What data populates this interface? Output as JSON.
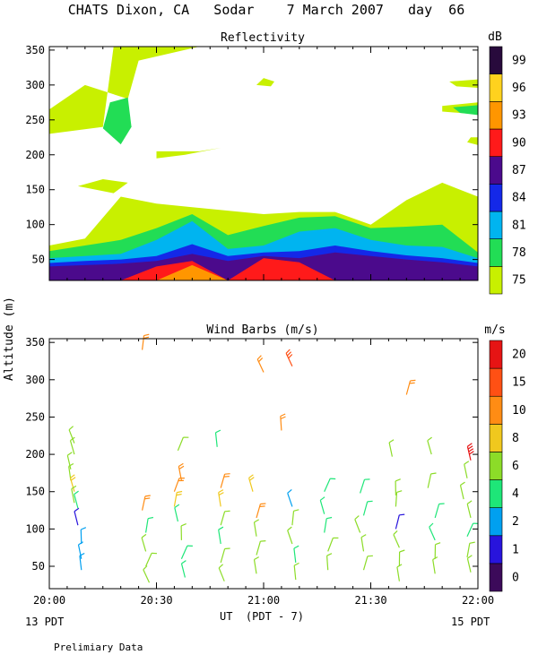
{
  "page": {
    "title": "CHATS Dixon, CA   Sodar    7 March 2007   day  66",
    "ylabel": "Altitude (m)",
    "xlabel": "UT  (PDT - 7)",
    "left_date": "13 PDT",
    "right_date": "15 PDT",
    "footer": "Prelimiary Data"
  },
  "chart_data": [
    {
      "type": "area",
      "title": "Reflectivity",
      "xlabel": "UT  (PDT - 7)",
      "ylabel": "Altitude (m)",
      "xlim_minutes": [
        0,
        120
      ],
      "x_ticks": [
        "20:00",
        "20:30",
        "21:00",
        "21:30",
        "22:00"
      ],
      "ylim": [
        20,
        355
      ],
      "y_ticks": [
        50,
        100,
        150,
        200,
        250,
        300,
        350
      ],
      "colorbar": {
        "unit": "dB",
        "levels": [
          75,
          78,
          81,
          84,
          87,
          90,
          93,
          96,
          99
        ],
        "colors": [
          "#c8f000",
          "#22dd55",
          "#00b4f0",
          "#1428e8",
          "#4b0a8c",
          "#ff1a1a",
          "#ff9600",
          "#ffd21e",
          "#280a3c"
        ]
      },
      "time_x": [
        0,
        10,
        20,
        30,
        40,
        50,
        60,
        70,
        80,
        90,
        100,
        110,
        120
      ],
      "layers": [
        {
          "level": 75,
          "top": [
            70,
            80,
            140,
            130,
            125,
            120,
            115,
            118,
            118,
            100,
            135,
            160,
            140
          ]
        },
        {
          "level": 78,
          "top": [
            62,
            70,
            78,
            95,
            115,
            85,
            98,
            110,
            112,
            95,
            97,
            100,
            60
          ]
        },
        {
          "level": 81,
          "top": [
            52,
            55,
            58,
            78,
            105,
            65,
            70,
            90,
            95,
            78,
            70,
            68,
            52
          ]
        },
        {
          "level": 84,
          "top": [
            45,
            48,
            50,
            55,
            72,
            55,
            60,
            62,
            70,
            62,
            56,
            52,
            45
          ]
        },
        {
          "level": 87,
          "top": [
            40,
            42,
            44,
            48,
            58,
            48,
            55,
            52,
            60,
            55,
            50,
            46,
            40
          ]
        },
        {
          "level": 90,
          "top": [
            0,
            0,
            0,
            40,
            48,
            0,
            52,
            46,
            0,
            0,
            0,
            0,
            0
          ]
        },
        {
          "level": 93,
          "top": [
            0,
            0,
            0,
            0,
            42,
            0,
            0,
            0,
            0,
            0,
            0,
            0,
            0
          ]
        }
      ],
      "patches_75": [
        [
          [
            18,
            355
          ],
          [
            42,
            355
          ],
          [
            25,
            335
          ],
          [
            22,
            280
          ],
          [
            10,
            300
          ],
          [
            0,
            265
          ],
          [
            0,
            230
          ],
          [
            15,
            240
          ]
        ],
        [
          [
            30,
            205
          ],
          [
            42,
            205
          ],
          [
            48,
            210
          ],
          [
            38,
            200
          ],
          [
            30,
            195
          ]
        ],
        [
          [
            15,
            165
          ],
          [
            22,
            160
          ],
          [
            18,
            145
          ],
          [
            8,
            155
          ]
        ],
        [
          [
            60,
            310
          ],
          [
            63,
            305
          ],
          [
            62,
            298
          ],
          [
            58,
            300
          ]
        ],
        [
          [
            112,
            305
          ],
          [
            120,
            308
          ],
          [
            120,
            296
          ],
          [
            114,
            298
          ]
        ],
        [
          [
            110,
            270
          ],
          [
            120,
            275
          ],
          [
            120,
            258
          ],
          [
            110,
            262
          ]
        ],
        [
          [
            118,
            225
          ],
          [
            120,
            225
          ],
          [
            120,
            214
          ],
          [
            117,
            218
          ]
        ]
      ],
      "patches_78": [
        [
          [
            17,
            275
          ],
          [
            22,
            282
          ],
          [
            23,
            240
          ],
          [
            20,
            215
          ],
          [
            15,
            238
          ]
        ],
        [
          [
            113,
            268
          ],
          [
            120,
            271
          ],
          [
            120,
            257
          ],
          [
            115,
            260
          ]
        ]
      ]
    },
    {
      "type": "scatter",
      "title": "Wind Barbs (m/s)",
      "xlabel": "UT  (PDT - 7)",
      "ylabel": "Altitude (m)",
      "xlim_minutes": [
        0,
        120
      ],
      "x_ticks": [
        "20:00",
        "20:30",
        "21:00",
        "21:30",
        "22:00"
      ],
      "ylim": [
        20,
        355
      ],
      "y_ticks": [
        50,
        100,
        150,
        200,
        250,
        300,
        350
      ],
      "colorbar": {
        "unit": "m/s",
        "levels": [
          0,
          1,
          2,
          4,
          6,
          8,
          10,
          15,
          20
        ],
        "colors": [
          "#3c0a5a",
          "#2814dc",
          "#00a0f0",
          "#1ee678",
          "#8cdc28",
          "#f0c81e",
          "#ff8c14",
          "#ff5014",
          "#e61414"
        ]
      },
      "barbs": [
        {
          "t": 7,
          "alt": 215,
          "speed": 6
        },
        {
          "t": 7,
          "alt": 200,
          "speed": 6
        },
        {
          "t": 6,
          "alt": 180,
          "speed": 6
        },
        {
          "t": 6,
          "alt": 165,
          "speed": 6
        },
        {
          "t": 7,
          "alt": 150,
          "speed": 8
        },
        {
          "t": 7,
          "alt": 135,
          "speed": 6
        },
        {
          "t": 8,
          "alt": 128,
          "speed": 4
        },
        {
          "t": 8,
          "alt": 105,
          "speed": 1
        },
        {
          "t": 9,
          "alt": 80,
          "speed": 2
        },
        {
          "t": 9,
          "alt": 60,
          "speed": 2
        },
        {
          "t": 9,
          "alt": 45,
          "speed": 2
        },
        {
          "t": 26,
          "alt": 340,
          "speed": 10
        },
        {
          "t": 26,
          "alt": 125,
          "speed": 10
        },
        {
          "t": 27,
          "alt": 95,
          "speed": 4
        },
        {
          "t": 27,
          "alt": 70,
          "speed": 6
        },
        {
          "t": 27,
          "alt": 50,
          "speed": 6
        },
        {
          "t": 28,
          "alt": 28,
          "speed": 6
        },
        {
          "t": 36,
          "alt": 205,
          "speed": 6
        },
        {
          "t": 37,
          "alt": 165,
          "speed": 10
        },
        {
          "t": 35,
          "alt": 150,
          "speed": 10
        },
        {
          "t": 35,
          "alt": 130,
          "speed": 8
        },
        {
          "t": 36,
          "alt": 110,
          "speed": 4
        },
        {
          "t": 37,
          "alt": 85,
          "speed": 6
        },
        {
          "t": 37,
          "alt": 60,
          "speed": 4
        },
        {
          "t": 38,
          "alt": 35,
          "speed": 4
        },
        {
          "t": 47,
          "alt": 210,
          "speed": 4
        },
        {
          "t": 48,
          "alt": 155,
          "speed": 10
        },
        {
          "t": 48,
          "alt": 130,
          "speed": 8
        },
        {
          "t": 48,
          "alt": 105,
          "speed": 6
        },
        {
          "t": 48,
          "alt": 80,
          "speed": 4
        },
        {
          "t": 48,
          "alt": 55,
          "speed": 6
        },
        {
          "t": 49,
          "alt": 30,
          "speed": 6
        },
        {
          "t": 57,
          "alt": 150,
          "speed": 8
        },
        {
          "t": 58,
          "alt": 115,
          "speed": 10
        },
        {
          "t": 58,
          "alt": 90,
          "speed": 6
        },
        {
          "t": 58,
          "alt": 65,
          "speed": 6
        },
        {
          "t": 58,
          "alt": 40,
          "speed": 6
        },
        {
          "t": 60,
          "alt": 310,
          "speed": 10
        },
        {
          "t": 65,
          "alt": 232,
          "speed": 10
        },
        {
          "t": 68,
          "alt": 318,
          "speed": 15
        },
        {
          "t": 68,
          "alt": 130,
          "speed": 2
        },
        {
          "t": 68,
          "alt": 105,
          "speed": 6
        },
        {
          "t": 68,
          "alt": 80,
          "speed": 6
        },
        {
          "t": 69,
          "alt": 55,
          "speed": 4
        },
        {
          "t": 69,
          "alt": 32,
          "speed": 6
        },
        {
          "t": 77,
          "alt": 150,
          "speed": 4
        },
        {
          "t": 77,
          "alt": 120,
          "speed": 4
        },
        {
          "t": 77,
          "alt": 95,
          "speed": 4
        },
        {
          "t": 78,
          "alt": 70,
          "speed": 6
        },
        {
          "t": 78,
          "alt": 45,
          "speed": 6
        },
        {
          "t": 87,
          "alt": 148,
          "speed": 4
        },
        {
          "t": 88,
          "alt": 118,
          "speed": 4
        },
        {
          "t": 87,
          "alt": 95,
          "speed": 6
        },
        {
          "t": 88,
          "alt": 70,
          "speed": 6
        },
        {
          "t": 88,
          "alt": 45,
          "speed": 6
        },
        {
          "t": 97,
          "alt": 145,
          "speed": 6
        },
        {
          "t": 97,
          "alt": 130,
          "speed": 6
        },
        {
          "t": 97,
          "alt": 100,
          "speed": 1
        },
        {
          "t": 98,
          "alt": 75,
          "speed": 6
        },
        {
          "t": 98,
          "alt": 50,
          "speed": 6
        },
        {
          "t": 98,
          "alt": 30,
          "speed": 6
        },
        {
          "t": 96,
          "alt": 197,
          "speed": 6
        },
        {
          "t": 100,
          "alt": 280,
          "speed": 10
        },
        {
          "t": 107,
          "alt": 200,
          "speed": 6
        },
        {
          "t": 106,
          "alt": 155,
          "speed": 6
        },
        {
          "t": 108,
          "alt": 115,
          "speed": 4
        },
        {
          "t": 108,
          "alt": 85,
          "speed": 4
        },
        {
          "t": 108,
          "alt": 60,
          "speed": 6
        },
        {
          "t": 108,
          "alt": 40,
          "speed": 6
        },
        {
          "t": 118,
          "alt": 192,
          "speed": 20
        },
        {
          "t": 117,
          "alt": 168,
          "speed": 6
        },
        {
          "t": 116,
          "alt": 140,
          "speed": 6
        },
        {
          "t": 118,
          "alt": 115,
          "speed": 6
        },
        {
          "t": 117,
          "alt": 90,
          "speed": 4
        },
        {
          "t": 117,
          "alt": 62,
          "speed": 6
        },
        {
          "t": 118,
          "alt": 42,
          "speed": 6
        }
      ]
    }
  ]
}
